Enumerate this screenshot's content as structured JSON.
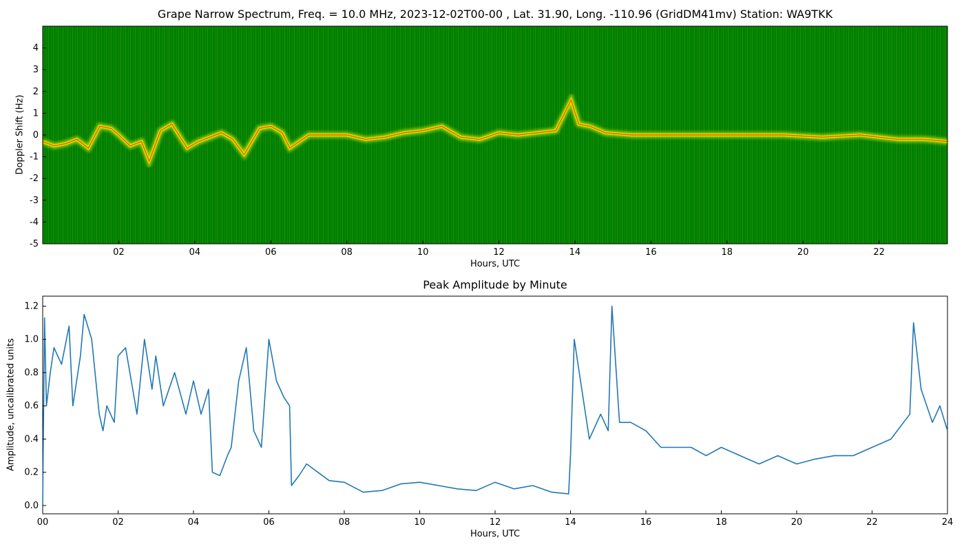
{
  "chart_data": [
    {
      "type": "heatmap",
      "title": "Grape Narrow Spectrum, Freq. = 10.0 MHz, 2023-12-02T00-00 , Lat.  31.90, Long. -110.96 (GridDM41mv) Station: WA9TKK",
      "xlabel": "Hours, UTC",
      "ylabel": "Doppler Shift (Hz)",
      "xlim": [
        0,
        23.8
      ],
      "ylim": [
        -5,
        5
      ],
      "x_ticks": [
        "02",
        "04",
        "06",
        "08",
        "10",
        "12",
        "14",
        "16",
        "18",
        "20",
        "22"
      ],
      "x_tick_values": [
        2,
        4,
        6,
        8,
        10,
        12,
        14,
        16,
        18,
        20,
        22
      ],
      "y_ticks": [
        -5,
        -4,
        -3,
        -2,
        -1,
        0,
        1,
        2,
        3,
        4
      ],
      "grid": false,
      "colors": {
        "background": "#008000",
        "mid": "#ffff00",
        "peak": "#ff3300"
      },
      "doppler_trace": {
        "x": [
          0,
          0.3,
          0.6,
          0.9,
          1.2,
          1.5,
          1.8,
          2.0,
          2.3,
          2.6,
          2.8,
          3.1,
          3.4,
          3.8,
          4.1,
          4.4,
          4.7,
          5.0,
          5.3,
          5.7,
          6.0,
          6.3,
          6.5,
          7.0,
          7.5,
          8.0,
          8.5,
          9.0,
          9.5,
          10.0,
          10.5,
          11.0,
          11.5,
          12.0,
          12.5,
          13.0,
          13.5,
          13.9,
          14.1,
          14.4,
          14.8,
          15.5,
          16.5,
          17.5,
          18.5,
          19.5,
          20.5,
          21.5,
          22.5,
          23.2,
          23.8
        ],
        "y": [
          -0.3,
          -0.5,
          -0.4,
          -0.2,
          -0.6,
          0.4,
          0.3,
          0.0,
          -0.5,
          -0.3,
          -1.2,
          0.2,
          0.5,
          -0.6,
          -0.3,
          -0.1,
          0.1,
          -0.2,
          -0.9,
          0.3,
          0.4,
          0.1,
          -0.6,
          0.0,
          0.0,
          0.0,
          -0.2,
          -0.1,
          0.1,
          0.2,
          0.4,
          -0.1,
          -0.2,
          0.1,
          0.0,
          0.1,
          0.2,
          1.6,
          0.5,
          0.4,
          0.1,
          0.0,
          0.0,
          0.0,
          0.0,
          0.0,
          -0.1,
          0.0,
          -0.2,
          -0.2,
          -0.3
        ]
      }
    },
    {
      "type": "line",
      "title": "Peak Amplitude by Minute",
      "xlabel": "Hours, UTC",
      "ylabel": "Amplitude, uncalibrated units",
      "xlim": [
        0,
        24
      ],
      "ylim": [
        -0.05,
        1.26
      ],
      "x_ticks": [
        "00",
        "02",
        "04",
        "06",
        "08",
        "10",
        "12",
        "14",
        "16",
        "18",
        "20",
        "22",
        "24"
      ],
      "x_tick_values": [
        0,
        2,
        4,
        6,
        8,
        10,
        12,
        14,
        16,
        18,
        20,
        22,
        24
      ],
      "y_ticks": [
        "0.0",
        "0.2",
        "0.4",
        "0.6",
        "0.8",
        "1.0",
        "1.2"
      ],
      "y_tick_values": [
        0,
        0.2,
        0.4,
        0.6,
        0.8,
        1.0,
        1.2
      ],
      "grid": false,
      "color": "#1f77b4",
      "x": [
        0,
        0.05,
        0.1,
        0.2,
        0.3,
        0.5,
        0.7,
        0.8,
        1.0,
        1.1,
        1.3,
        1.5,
        1.6,
        1.7,
        1.9,
        2.0,
        2.2,
        2.5,
        2.7,
        2.9,
        3.0,
        3.2,
        3.5,
        3.8,
        4.0,
        4.2,
        4.4,
        4.5,
        4.7,
        4.9,
        5.0,
        5.2,
        5.4,
        5.6,
        5.8,
        6.0,
        6.2,
        6.4,
        6.55,
        6.6,
        6.8,
        7.0,
        7.3,
        7.6,
        8.0,
        8.5,
        9.0,
        9.5,
        10.0,
        10.5,
        11.0,
        11.5,
        12.0,
        12.5,
        13.0,
        13.5,
        13.95,
        14.0,
        14.1,
        14.3,
        14.5,
        14.8,
        15.0,
        15.1,
        15.3,
        15.6,
        16.0,
        16.4,
        16.8,
        17.2,
        17.6,
        18.0,
        18.5,
        19.0,
        19.5,
        20.0,
        20.5,
        21.0,
        21.5,
        22.0,
        22.5,
        23.0,
        23.1,
        23.3,
        23.6,
        23.8,
        24.0
      ],
      "y": [
        0.0,
        1.13,
        0.6,
        0.8,
        0.95,
        0.85,
        1.08,
        0.6,
        0.9,
        1.15,
        1.0,
        0.55,
        0.45,
        0.6,
        0.5,
        0.9,
        0.95,
        0.55,
        1.0,
        0.7,
        0.9,
        0.6,
        0.8,
        0.55,
        0.75,
        0.55,
        0.7,
        0.2,
        0.18,
        0.3,
        0.35,
        0.75,
        0.95,
        0.45,
        0.35,
        1.0,
        0.75,
        0.65,
        0.6,
        0.12,
        0.18,
        0.25,
        0.2,
        0.15,
        0.14,
        0.08,
        0.09,
        0.13,
        0.14,
        0.12,
        0.1,
        0.09,
        0.14,
        0.1,
        0.12,
        0.08,
        0.07,
        0.3,
        1.0,
        0.7,
        0.4,
        0.55,
        0.45,
        1.2,
        0.5,
        0.5,
        0.45,
        0.35,
        0.35,
        0.35,
        0.3,
        0.35,
        0.3,
        0.25,
        0.3,
        0.25,
        0.28,
        0.3,
        0.3,
        0.35,
        0.4,
        0.55,
        1.1,
        0.7,
        0.5,
        0.6,
        0.45
      ]
    }
  ]
}
